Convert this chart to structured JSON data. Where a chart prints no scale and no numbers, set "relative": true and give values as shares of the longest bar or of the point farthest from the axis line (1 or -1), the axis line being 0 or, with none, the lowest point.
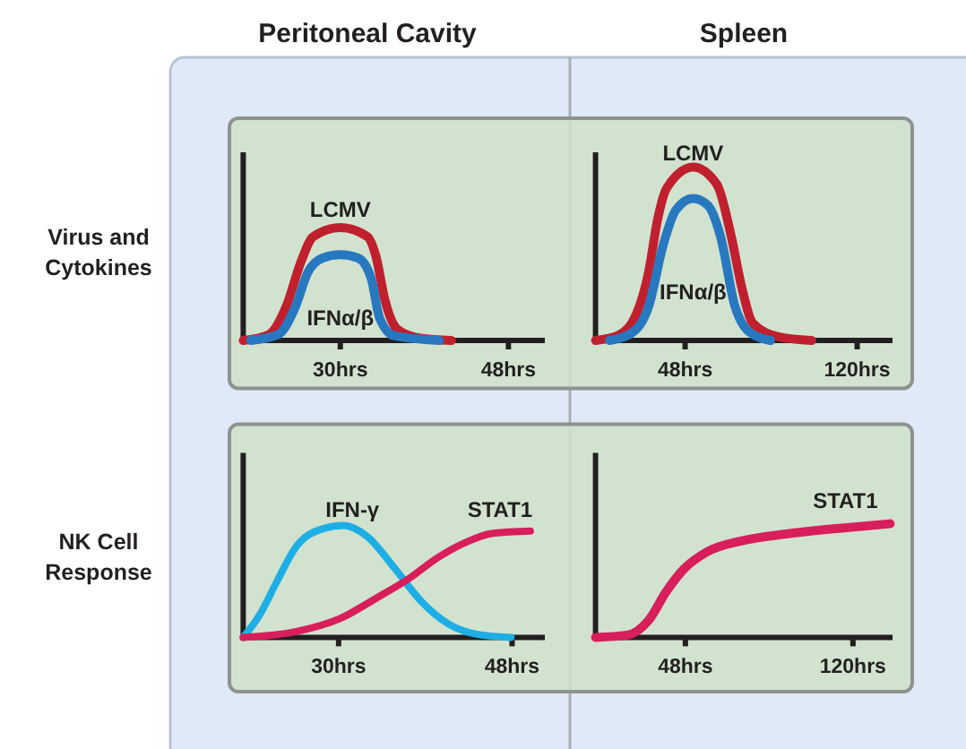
{
  "chart_data": [
    {
      "type": "line",
      "title": "Peritoneal Cavity",
      "ylabel": "Virus and Cytokines",
      "relative": true,
      "tick_labels": "x",
      "xlim": [
        19.6,
        51.9
      ],
      "xticks": [
        {
          "value": 30,
          "label": "30hrs"
        },
        {
          "value": 48,
          "label": "48hrs"
        }
      ],
      "series": [
        {
          "name": "LCMV",
          "color": "#c0202e",
          "x": [
            19.6,
            22.3,
            24.2,
            25.8,
            27.1,
            30,
            32.9,
            33.8,
            34.8,
            36.1,
            38.6,
            41.9
          ],
          "values": [
            0,
            0.05,
            0.3,
            0.7,
            0.92,
            1,
            0.92,
            0.75,
            0.35,
            0.1,
            0.02,
            0
          ]
        },
        {
          "name": "IFNα/β",
          "color": "#2878c0",
          "x": [
            20.4,
            23.3,
            25.2,
            26.5,
            28.1,
            30,
            31.9,
            33.3,
            34.2,
            35.8,
            40.6
          ],
          "values": [
            0,
            0.05,
            0.3,
            0.6,
            0.73,
            0.76,
            0.73,
            0.55,
            0.2,
            0.04,
            0
          ]
        }
      ]
    },
    {
      "type": "line",
      "title": "Spleen",
      "relative": true,
      "tick_labels": "x",
      "xlim": [
        10.5,
        134.8
      ],
      "xticks": [
        {
          "value": 48,
          "label": "48hrs"
        },
        {
          "value": 120,
          "label": "120hrs"
        }
      ],
      "series": [
        {
          "name": "LCMV",
          "color": "#c0202e",
          "x": [
            10.5,
            20,
            27.5,
            32.8,
            36.5,
            40.3,
            51.3,
            61.3,
            67.3,
            71.8,
            76.3,
            87.5,
            101
          ],
          "values": [
            0,
            0.03,
            0.15,
            0.4,
            0.7,
            0.88,
            1,
            0.9,
            0.6,
            0.3,
            0.1,
            0.02,
            0
          ]
        },
        {
          "name": "IFNα/β",
          "color": "#2878c0",
          "x": [
            16.3,
            25.3,
            32.8,
            38.8,
            44,
            51.3,
            57.5,
            62.8,
            68.8,
            74.8,
            83.8
          ],
          "values": [
            0,
            0.04,
            0.2,
            0.55,
            0.75,
            0.82,
            0.78,
            0.6,
            0.2,
            0.05,
            0
          ]
        }
      ]
    },
    {
      "type": "line",
      "ylabel": "NK Cell Response",
      "relative": true,
      "tick_labels": "x",
      "xlim": [
        20.1,
        51.4
      ],
      "xticks": [
        {
          "value": 30,
          "label": "30hrs"
        },
        {
          "value": 48,
          "label": "48hrs"
        }
      ],
      "series": [
        {
          "name": "IFN-γ",
          "color": "#1eaee6",
          "x": [
            20.1,
            21.8,
            23.6,
            25.5,
            28.3,
            30.5,
            33,
            35.8,
            38.6,
            41.4,
            44.2,
            47.9
          ],
          "values": [
            0,
            0.2,
            0.5,
            0.8,
            0.97,
            1,
            0.9,
            0.62,
            0.32,
            0.12,
            0.03,
            0
          ]
        },
        {
          "name": "STAT1",
          "color": "#d81e5b",
          "x": [
            20.1,
            25.5,
            30.2,
            33.9,
            37.2,
            40.4,
            43.2,
            46,
            49.9
          ],
          "values": [
            0,
            0.05,
            0.17,
            0.35,
            0.52,
            0.72,
            0.85,
            0.93,
            0.95
          ]
        }
      ]
    },
    {
      "type": "line",
      "relative": true,
      "tick_labels": "x",
      "xlim": [
        9.4,
        137
      ],
      "xticks": [
        {
          "value": 48,
          "label": "48hrs"
        },
        {
          "value": 120,
          "label": "120hrs"
        }
      ],
      "series": [
        {
          "name": "STAT1",
          "color": "#d81e5b",
          "x": [
            9.4,
            23,
            32.2,
            39.7,
            47.3,
            57.1,
            72.3,
            91.2,
            114,
            136
          ],
          "values": [
            0,
            0.02,
            0.15,
            0.4,
            0.6,
            0.75,
            0.85,
            0.91,
            0.96,
            1
          ]
        }
      ]
    }
  ]
}
